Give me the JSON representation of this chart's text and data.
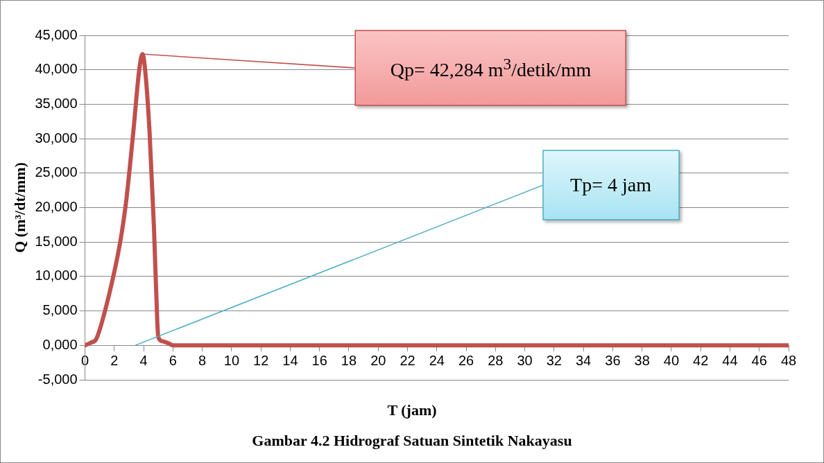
{
  "chart_data": {
    "type": "line",
    "xlabel": "T (jam)",
    "ylabel": "Q (m³/dt/mm)",
    "x": [
      0,
      0.4,
      0.76,
      1.3,
      1.97,
      2.4,
      2.8,
      3.3,
      3.7,
      3.92,
      4.1,
      4.4,
      4.7,
      4.93,
      5.0,
      5.3,
      5.7,
      6,
      8,
      12,
      16,
      20,
      24,
      28,
      32,
      36,
      40,
      44,
      48
    ],
    "series": [
      {
        "color": "#c0504d",
        "values": [
          0,
          400,
          900,
          4500,
          10400,
          15000,
          20800,
          31100,
          40000,
          42284,
          40000,
          31100,
          17300,
          3500,
          1200,
          600,
          300,
          0,
          0,
          0,
          0,
          0,
          0,
          0,
          0,
          0,
          0,
          0,
          0
        ]
      }
    ],
    "xlim": [
      0,
      48
    ],
    "xticks": [
      0,
      2,
      4,
      6,
      8,
      10,
      12,
      14,
      16,
      18,
      20,
      22,
      24,
      26,
      28,
      30,
      32,
      34,
      36,
      38,
      40,
      42,
      44,
      46,
      48
    ],
    "ylim": [
      -5000,
      45000
    ],
    "yticks": [
      {
        "value": -5000,
        "label": "-5,000"
      },
      {
        "value": 0,
        "label": "0,000"
      },
      {
        "value": 5000,
        "label": "5,000"
      },
      {
        "value": 10000,
        "label": "10,000"
      },
      {
        "value": 15000,
        "label": "15,000"
      },
      {
        "value": 20000,
        "label": "20,000"
      },
      {
        "value": 25000,
        "label": "25,000"
      },
      {
        "value": 30000,
        "label": "30,000"
      },
      {
        "value": 35000,
        "label": "35,000"
      },
      {
        "value": 40000,
        "label": "40,000"
      },
      {
        "value": 45000,
        "label": "45,000"
      }
    ],
    "grid": "y",
    "legend": false,
    "marker": "none",
    "line_style": "solid",
    "annotations": [
      "Qp= 42,284 m$^{3}$/detik/mm",
      "Tp= 4 jam",
      "Gambar 4.2 Hidrograf Satuan Sintetik Nakayasu"
    ]
  }
}
